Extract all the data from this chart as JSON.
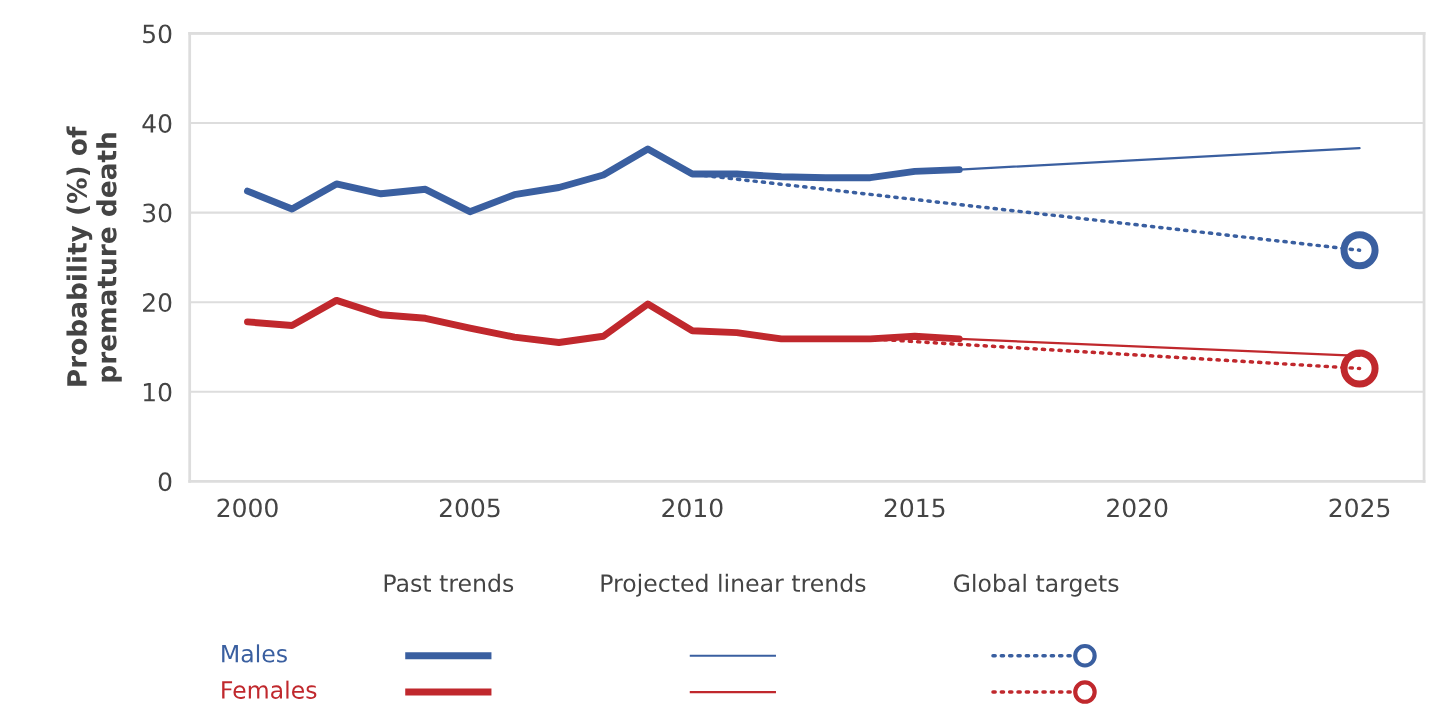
{
  "chart_data": {
    "type": "line",
    "ylabel": "Probability (%) of\npremature death",
    "xlim": [
      1998.7,
      2026.45
    ],
    "xticks": [
      2000,
      2005,
      2010,
      2015,
      2020,
      2025
    ],
    "ylim": [
      0,
      50
    ],
    "yticks": [
      0,
      10,
      20,
      30,
      40,
      50
    ],
    "grid": "y",
    "legend": "bottom",
    "annotations": [
      "Past trends",
      "Projected linear trends",
      "Global targets"
    ],
    "series": [
      {
        "name": "Males",
        "color": "#3a5fa0",
        "line_style": "solid",
        "marker": "none",
        "x": [
          2000,
          2001,
          2002,
          2003,
          2004,
          2005,
          2006,
          2007,
          2008,
          2009,
          2010,
          2011,
          2012,
          2013,
          2014,
          2015,
          2016
        ],
        "values": [
          32.4,
          30.4,
          33.2,
          32.1,
          32.6,
          30.1,
          32.0,
          32.8,
          34.2,
          37.1,
          34.3,
          34.3,
          34.0,
          33.9,
          33.9,
          34.6,
          34.8
        ]
      },
      {
        "name": "Females",
        "color": "#c0282d",
        "line_style": "solid",
        "marker": "none",
        "x": [
          2000,
          2001,
          2002,
          2003,
          2004,
          2005,
          2006,
          2007,
          2008,
          2009,
          2010,
          2011,
          2012,
          2013,
          2014,
          2015,
          2016
        ],
        "values": [
          17.8,
          17.4,
          20.2,
          18.6,
          18.2,
          17.1,
          16.1,
          15.5,
          16.2,
          19.8,
          16.8,
          16.6,
          15.9,
          15.9,
          15.9,
          16.2,
          15.9
        ]
      },
      {
        "color": "#3a5fa0",
        "line_style": "solid",
        "marker": "none",
        "x": [
          2016,
          2025
        ],
        "values": [
          34.8,
          37.2
        ]
      },
      {
        "color": "#c0282d",
        "line_style": "solid",
        "marker": "none",
        "x": [
          2016,
          2025
        ],
        "values": [
          15.9,
          14.0
        ]
      },
      {
        "color": "#3a5fa0",
        "line_style": "dotted",
        "marker": "none",
        "x": [
          2010,
          2025
        ],
        "values": [
          34.3,
          25.8
        ]
      },
      {
        "color": "#c0282d",
        "line_style": "dotted",
        "marker": "none",
        "x": [
          2014,
          2025
        ],
        "values": [
          15.9,
          12.6
        ]
      },
      {
        "type": "scatter",
        "color": "#3a5fa0",
        "marker": "circle",
        "x": [
          2025
        ],
        "values": [
          25.8
        ]
      },
      {
        "type": "scatter",
        "color": "#c0282d",
        "marker": "circle",
        "x": [
          2025
        ],
        "values": [
          12.6
        ]
      }
    ]
  }
}
